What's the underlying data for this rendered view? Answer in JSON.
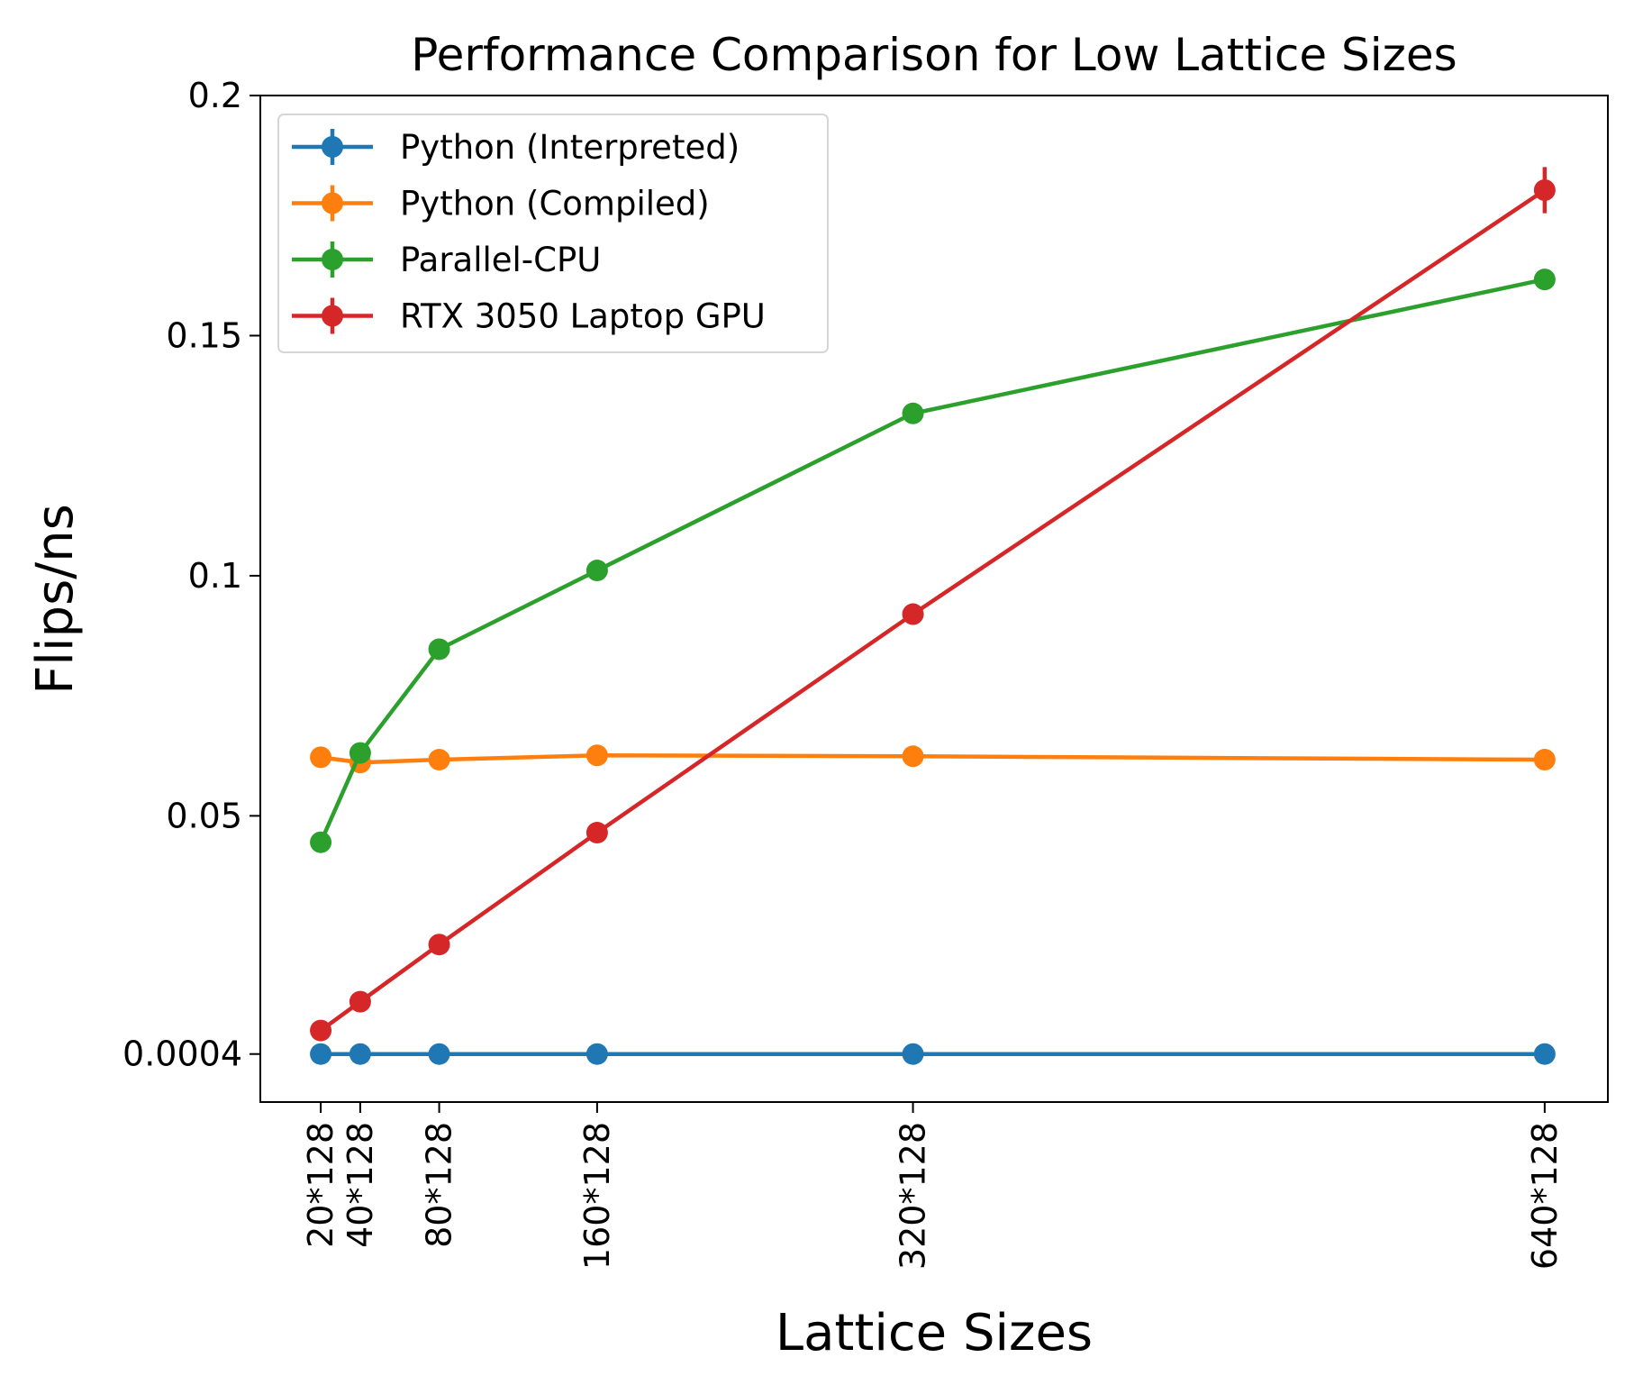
{
  "chart_data": {
    "type": "line",
    "title": "Performance Comparison for Low Lattice Sizes",
    "xlabel": "Lattice Sizes",
    "ylabel": "Flips/ns",
    "x": [
      20,
      40,
      80,
      160,
      320,
      640
    ],
    "x_tick_labels": [
      "20*128",
      "40*128",
      "80*128",
      "160*128",
      "320*128",
      "640*128"
    ],
    "y_ticks": [
      0.0004,
      0.05,
      0.1,
      0.15,
      0.2
    ],
    "y_tick_labels": [
      "0.0004",
      "0.05",
      "0.1",
      "0.15",
      "0.2"
    ],
    "xlim": [
      -10.6,
      672
    ],
    "ylim": [
      -0.0096,
      0.2
    ],
    "grid": false,
    "legend_position": "upper-left",
    "series": [
      {
        "name": "Python (Interpreted)",
        "color": "#1f77b4",
        "values": [
          0.0004,
          0.0004,
          0.0004,
          0.0004,
          0.0004,
          0.0004
        ],
        "yerr": [
          0,
          0,
          0,
          0,
          0,
          0
        ]
      },
      {
        "name": "Python (Compiled)",
        "color": "#ff7f0e",
        "values": [
          0.0622,
          0.0611,
          0.0617,
          0.0626,
          0.0624,
          0.0617
        ],
        "yerr": [
          0,
          0,
          0,
          0,
          0,
          0
        ]
      },
      {
        "name": "Parallel-CPU",
        "color": "#2ca02c",
        "values": [
          0.0445,
          0.0631,
          0.0847,
          0.1011,
          0.1338,
          0.1617
        ],
        "yerr": [
          0.0005,
          0.0008,
          0.0008,
          0.002,
          0.0015,
          0.002
        ]
      },
      {
        "name": "RTX 3050 Laptop GPU",
        "color": "#d62728",
        "values": [
          0.0053,
          0.0113,
          0.0232,
          0.0465,
          0.092,
          0.1803
        ],
        "yerr": [
          0.0003,
          0.0005,
          0.0005,
          0.0008,
          0.0022,
          0.0048
        ]
      }
    ]
  }
}
